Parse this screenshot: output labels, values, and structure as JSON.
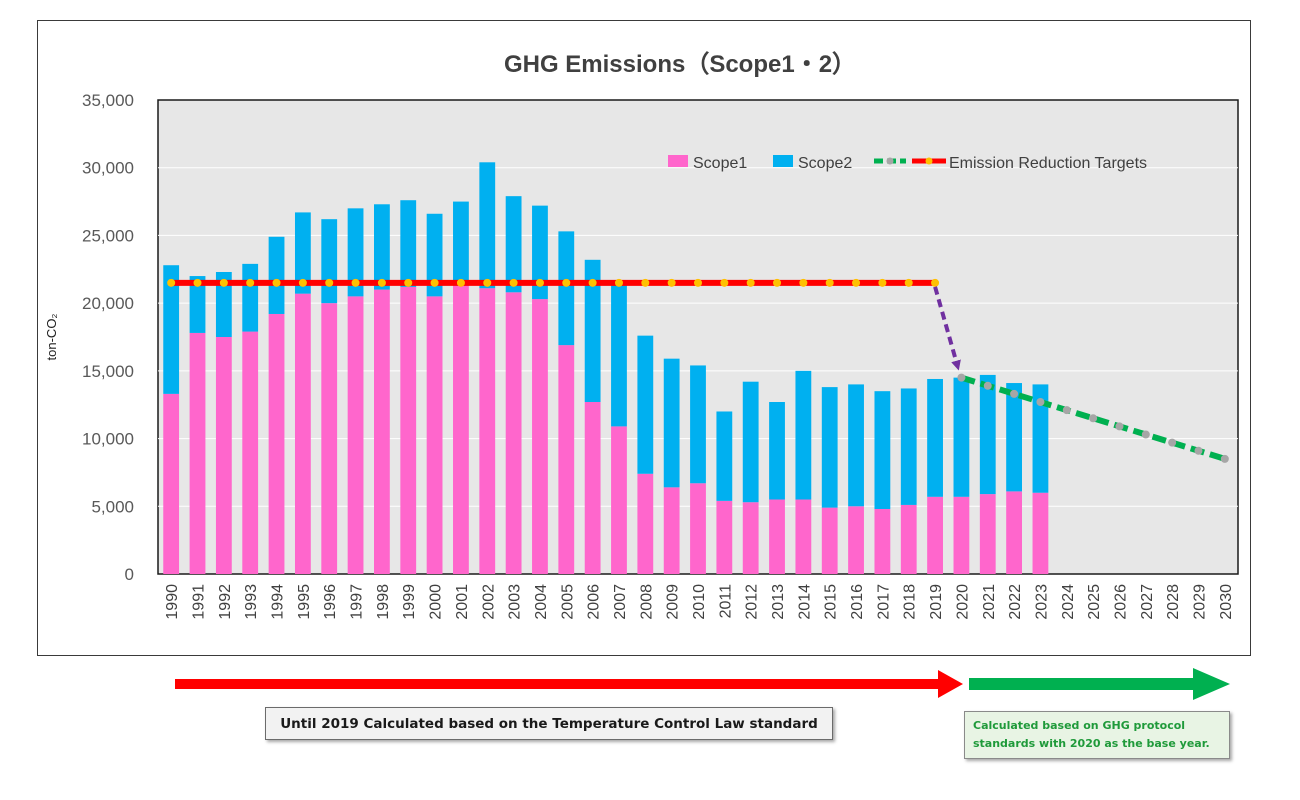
{
  "chart_data": {
    "type": "bar",
    "title": "GHG Emissions（Scope1・2）",
    "ylabel": "ton-CO₂",
    "ylim": [
      0,
      35000
    ],
    "yticks": [
      0,
      5000,
      10000,
      15000,
      20000,
      25000,
      30000,
      35000
    ],
    "ytick_labels": [
      "0",
      "5,000",
      "10,000",
      "15,000",
      "20,000",
      "25,000",
      "30,000",
      "35,000"
    ],
    "stacked": true,
    "grid": "horizontal",
    "legend_position": "top-right",
    "categories": [
      "1990",
      "1991",
      "1992",
      "1993",
      "1994",
      "1995",
      "1996",
      "1997",
      "1998",
      "1999",
      "2000",
      "2001",
      "2002",
      "2003",
      "2004",
      "2005",
      "2006",
      "2007",
      "2008",
      "2009",
      "2010",
      "2011",
      "2012",
      "2013",
      "2014",
      "2015",
      "2016",
      "2017",
      "2018",
      "2019",
      "2020",
      "2021",
      "2022",
      "2023",
      "2024",
      "2025",
      "2026",
      "2027",
      "2028",
      "2029",
      "2030"
    ],
    "series": [
      {
        "name": "Scope1",
        "type": "bar",
        "color": "#ff66cc",
        "values": [
          13300,
          17800,
          17500,
          17900,
          19200,
          20700,
          20000,
          20500,
          21000,
          21200,
          20500,
          21300,
          21100,
          20800,
          20300,
          16900,
          12700,
          10900,
          7400,
          6400,
          6700,
          5400,
          5300,
          5500,
          5500,
          4900,
          5000,
          4800,
          5100,
          5700,
          5700,
          5900,
          6100,
          6000,
          null,
          null,
          null,
          null,
          null,
          null,
          null
        ]
      },
      {
        "name": "Scope2",
        "type": "bar",
        "color": "#00b0f0",
        "values": [
          9500,
          4200,
          4800,
          5000,
          5700,
          6000,
          6200,
          6500,
          6300,
          6400,
          6100,
          6200,
          9300,
          7100,
          6900,
          8400,
          10500,
          10400,
          10200,
          9500,
          8700,
          6600,
          8900,
          7200,
          9500,
          8900,
          9000,
          8700,
          8600,
          8700,
          8800,
          8800,
          8000,
          8000,
          null,
          null,
          null,
          null,
          null,
          null,
          null
        ]
      },
      {
        "name": "",
        "type": "line",
        "color": "#00b050",
        "marker_color": "#a6a6a6",
        "values": [
          null,
          null,
          null,
          null,
          null,
          null,
          null,
          null,
          null,
          null,
          null,
          null,
          null,
          null,
          null,
          null,
          null,
          null,
          null,
          null,
          null,
          null,
          null,
          null,
          null,
          null,
          null,
          null,
          null,
          null,
          14500,
          13900,
          13300,
          12700,
          12100,
          11500,
          10900,
          10300,
          9700,
          9100,
          8500
        ]
      },
      {
        "name": "Emission Reduction Targets",
        "type": "line",
        "color": "#ff0000",
        "marker_color": "#ffc000",
        "values": [
          21500,
          21500,
          21500,
          21500,
          21500,
          21500,
          21500,
          21500,
          21500,
          21500,
          21500,
          21500,
          21500,
          21500,
          21500,
          21500,
          21500,
          21500,
          21500,
          21500,
          21500,
          21500,
          21500,
          21500,
          21500,
          21500,
          21500,
          21500,
          21500,
          21500,
          null,
          null,
          null,
          null,
          null,
          null,
          null,
          null,
          null,
          null,
          null
        ]
      }
    ],
    "annotations": [
      {
        "type": "dashed-arrow",
        "color": "#7030a0",
        "from": [
          "2019",
          21500
        ],
        "to": [
          "2020",
          14500
        ]
      }
    ]
  },
  "notes": {
    "left": "Until 2019 Calculated based on the Temperature Control Law standard",
    "right_line1": "Calculated based on GHG protocol",
    "right_line2": "standards with 2020 as the base year.",
    "left_arrow_color": "#ff0000",
    "right_arrow_color": "#00b050"
  },
  "colors": {
    "plot_background": "#e7e7e7",
    "gridline": "#ffffff"
  }
}
